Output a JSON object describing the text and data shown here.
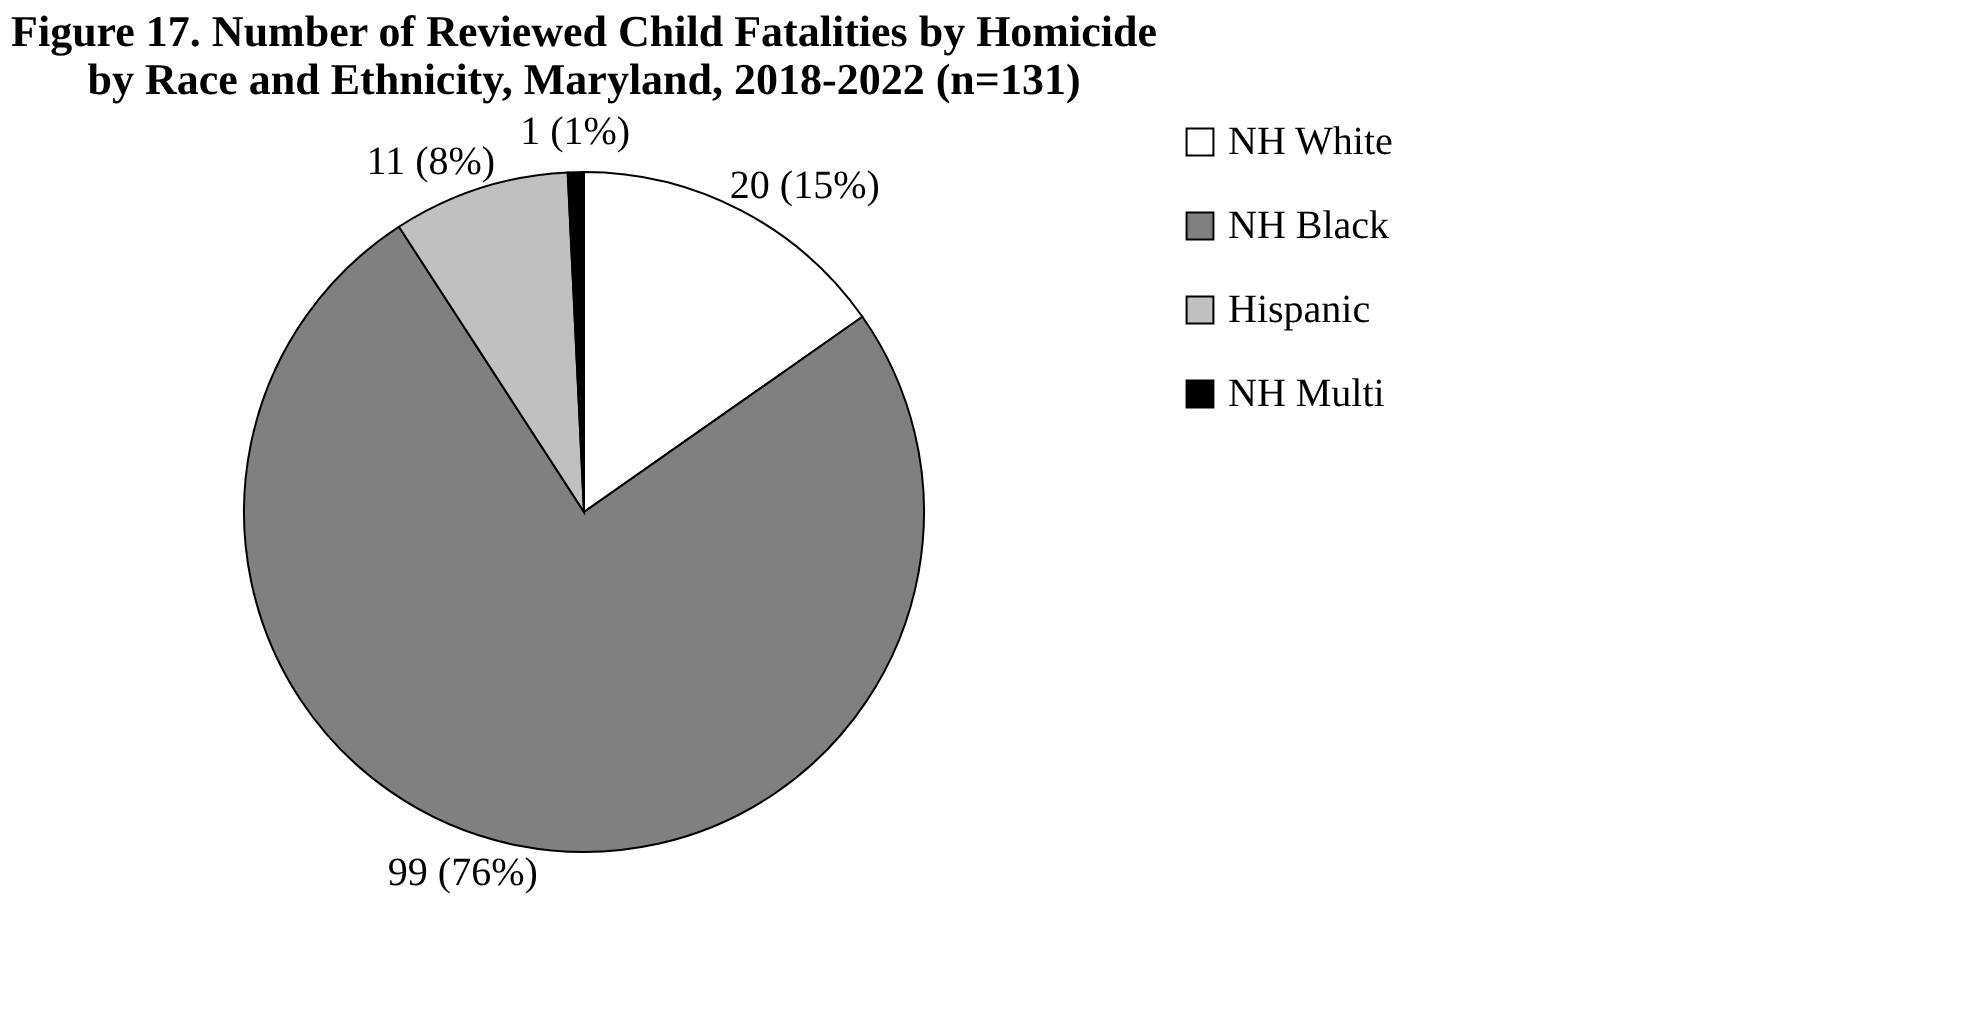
{
  "chart_data": {
    "type": "pie",
    "title": [
      "Figure 17. Number of Reviewed Child Fatalities by Homicide",
      "by Race and Ethnicity, Maryland, 2018-2022 (n=131)"
    ],
    "categories": [
      "NH White",
      "NH Black",
      "Hispanic",
      "NH Multi"
    ],
    "values": [
      20,
      99,
      11,
      1
    ],
    "colors": [
      "#ffffff",
      "#808080",
      "#c0c0c0",
      "#000000"
    ],
    "value_labels": [
      "20 (15%)",
      "99 (76%)",
      "11 (8%)",
      "1 (1%)"
    ],
    "legend": "right"
  }
}
